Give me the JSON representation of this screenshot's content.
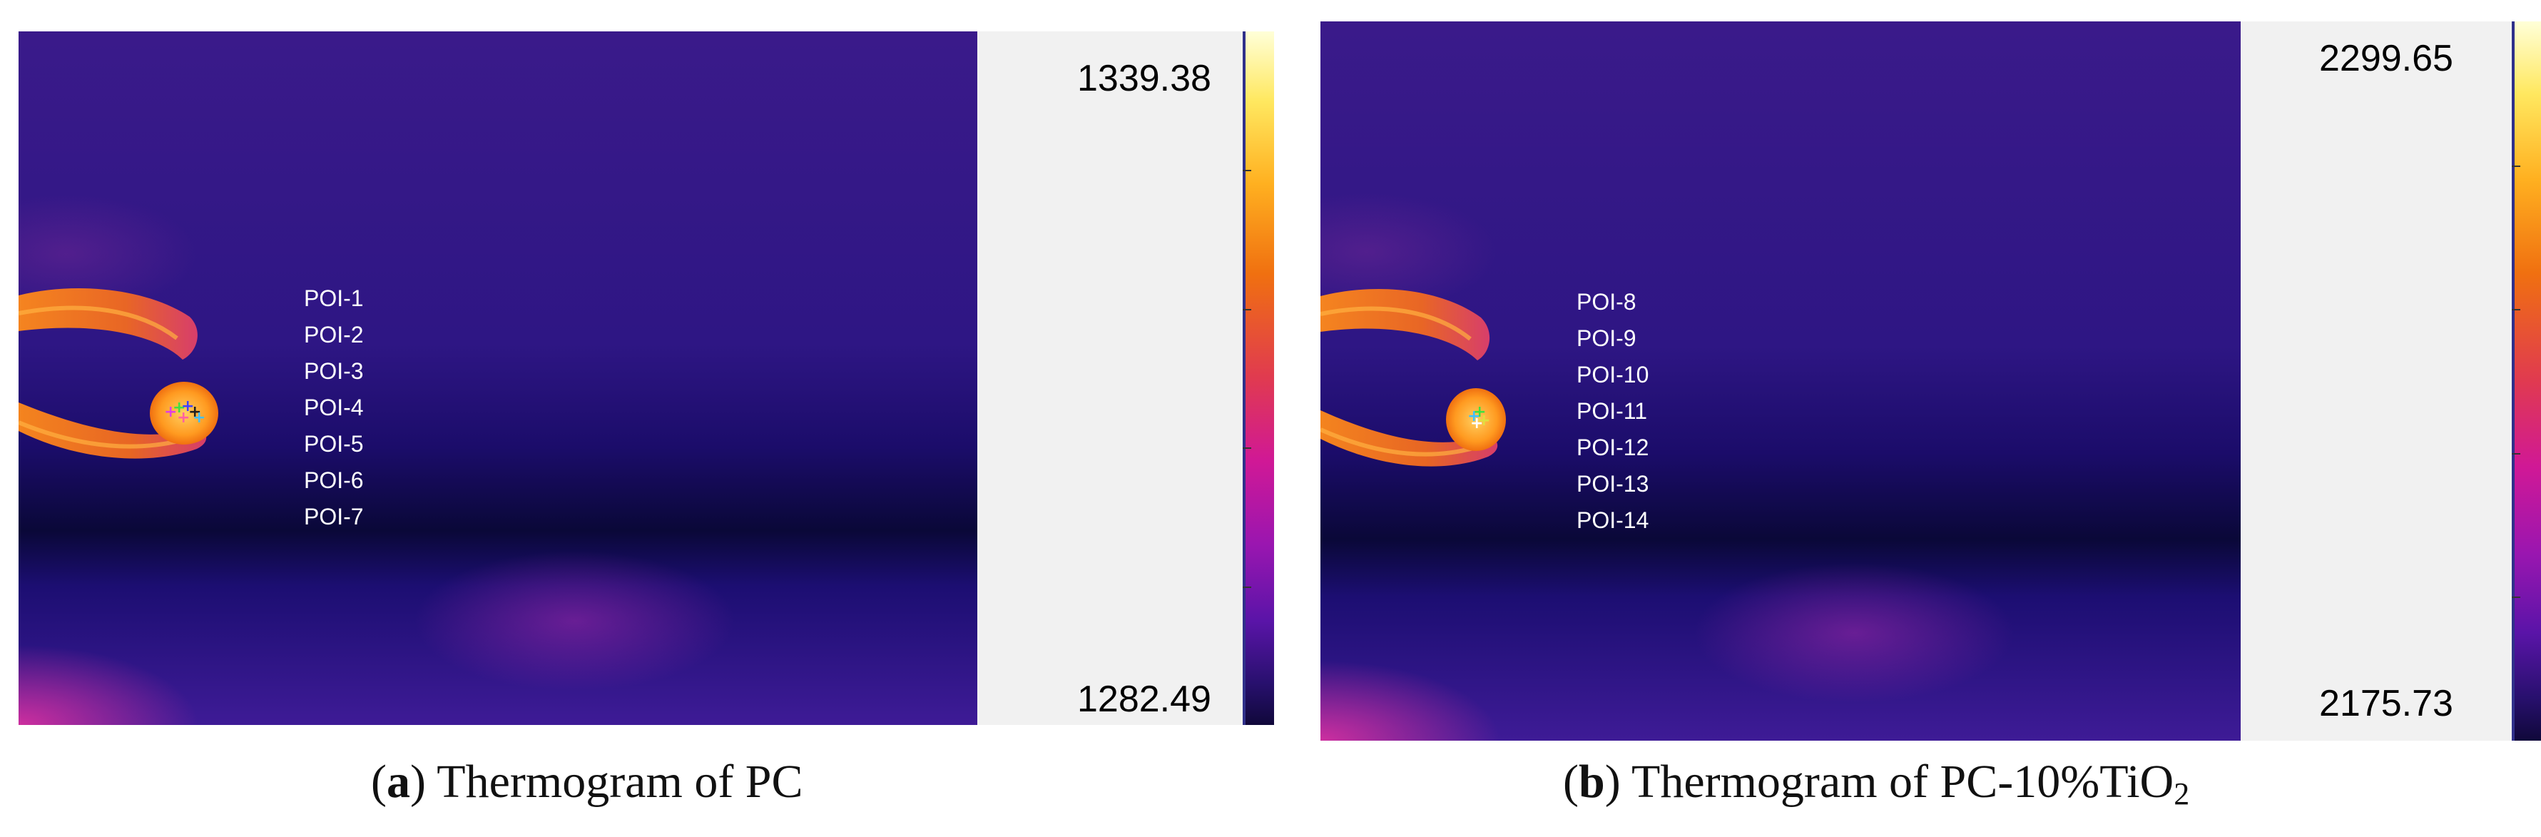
{
  "colors": {
    "background_cold": "#2e1684",
    "band_dark": "#0a0838",
    "hot_orange": "#f07010",
    "hot_magenta": "#e032a0",
    "scale_panel": "#f1f1f1"
  },
  "panels": [
    {
      "scale_max": "1339.38",
      "scale_min": "1282.49",
      "poi_labels": [
        "POI-1",
        "POI-2",
        "POI-3",
        "POI-4",
        "POI-5",
        "POI-6",
        "POI-7"
      ],
      "caption": {
        "letter": "a",
        "text": "Thermogram of PC"
      }
    },
    {
      "scale_max": "2299.65",
      "scale_min": "2175.73",
      "poi_labels": [
        "POI-8",
        "POI-9",
        "POI-10",
        "POI-11",
        "POI-12",
        "POI-13",
        "POI-14"
      ],
      "caption": {
        "letter": "b",
        "text_main": "Thermogram of PC-10%TiO",
        "text_sub": "2"
      }
    }
  ]
}
